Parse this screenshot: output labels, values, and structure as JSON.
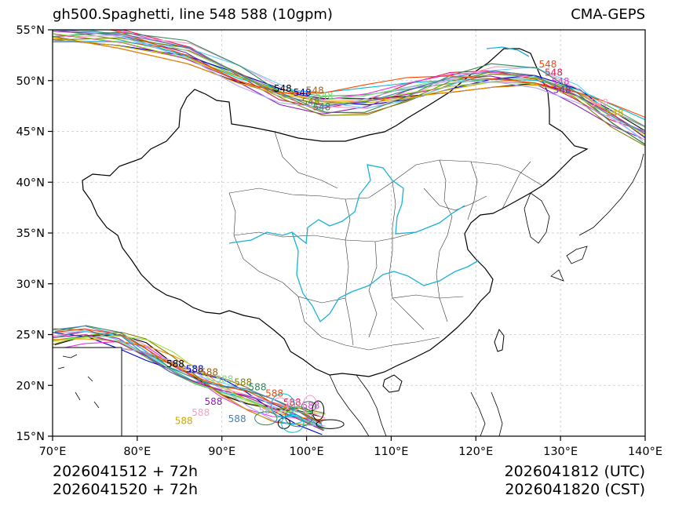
{
  "header": {
    "title": "gh500.Spaghetti, line 548 588 (10gpm)",
    "source": "CMA-GEPS"
  },
  "footer": {
    "init_utc": "2026041512 + 72h",
    "init_cst": "2026041520 + 72h",
    "valid_utc": "2026041812 (UTC)",
    "valid_cst": "2026041820 (CST)"
  },
  "chart_data": {
    "type": "line",
    "title": "gh500.Spaghetti, line 548 588 (10gpm)",
    "variable": "500 hPa geopotential height",
    "contour_levels": [
      548,
      588
    ],
    "units": "10gpm",
    "xlim": [
      70,
      140
    ],
    "ylim": [
      15,
      55
    ],
    "xticks": [
      70,
      80,
      90,
      100,
      110,
      120,
      130,
      140
    ],
    "xtick_labels": [
      "70°E",
      "80°E",
      "90°E",
      "100°E",
      "110°E",
      "120°E",
      "130°E",
      "140°E"
    ],
    "yticks": [
      15,
      20,
      25,
      30,
      35,
      40,
      45,
      50,
      55
    ],
    "ytick_labels": [
      "15°N",
      "20°N",
      "25°N",
      "30°N",
      "35°N",
      "40°N",
      "45°N",
      "50°N",
      "55°N"
    ],
    "grid": true,
    "member_colors": [
      "#000000",
      "#e6194b",
      "#3cb44b",
      "#0000cc",
      "#f032e6",
      "#00bcd4",
      "#9a6324",
      "#911eb4",
      "#ff8c00",
      "#7fdc7f",
      "#ff99cc",
      "#66ccff",
      "#808000",
      "#ccaa00",
      "#c71585",
      "#2e8b57",
      "#aaaaff",
      "#a0e040",
      "#ff4500",
      "#4682b4"
    ],
    "series": [
      {
        "name": "548 contour (ensemble members)",
        "level": 548,
        "trough": [
          [
            70,
            54.8
          ],
          [
            78,
            54.3
          ],
          [
            86,
            53.0
          ],
          [
            92,
            50.8
          ],
          [
            97,
            49.0
          ],
          [
            102,
            47.9
          ],
          [
            107,
            48.0
          ],
          [
            112,
            48.9
          ],
          [
            117,
            50.0
          ],
          [
            122,
            50.7
          ],
          [
            127,
            50.6
          ],
          [
            132,
            49.0
          ],
          [
            136,
            46.8
          ],
          [
            140,
            44.8
          ]
        ],
        "labels": [
          {
            "text": "548",
            "lon": 97.2,
            "lat": 48.9
          },
          {
            "text": "548",
            "lon": 99.5,
            "lat": 48.5
          },
          {
            "text": "548",
            "lon": 101.0,
            "lat": 48.7
          },
          {
            "text": "548",
            "lon": 102.1,
            "lat": 48.2
          },
          {
            "text": "548",
            "lon": 100.5,
            "lat": 47.6
          },
          {
            "text": "548",
            "lon": 101.8,
            "lat": 47.1
          },
          {
            "text": "548",
            "lon": 128.5,
            "lat": 51.3
          },
          {
            "text": "548",
            "lon": 129.2,
            "lat": 50.5
          },
          {
            "text": "548",
            "lon": 130.0,
            "lat": 49.6
          },
          {
            "text": "548",
            "lon": 130.2,
            "lat": 48.8
          },
          {
            "text": "548",
            "lon": 134.6,
            "lat": 47.5
          },
          {
            "text": "548",
            "lon": 136.4,
            "lat": 46.5
          }
        ]
      },
      {
        "name": "588 contour (ensemble members)",
        "level": 588,
        "trough": [
          [
            70,
            24.6
          ],
          [
            74,
            24.8
          ],
          [
            78,
            24.3
          ],
          [
            81,
            23.3
          ],
          [
            84,
            22.0
          ],
          [
            87,
            20.9
          ],
          [
            90,
            19.8
          ],
          [
            93,
            18.8
          ],
          [
            96,
            17.6
          ],
          [
            99,
            16.8
          ],
          [
            102,
            16.0
          ]
        ],
        "labels": [
          {
            "text": "588",
            "lon": 84.5,
            "lat": 21.8
          },
          {
            "text": "588",
            "lon": 86.8,
            "lat": 21.3
          },
          {
            "text": "588",
            "lon": 88.5,
            "lat": 21.0
          },
          {
            "text": "588",
            "lon": 90.3,
            "lat": 20.3
          },
          {
            "text": "588",
            "lon": 92.5,
            "lat": 20.0
          },
          {
            "text": "588",
            "lon": 94.2,
            "lat": 19.5
          },
          {
            "text": "588",
            "lon": 96.2,
            "lat": 18.9
          },
          {
            "text": "588",
            "lon": 98.3,
            "lat": 18.0
          },
          {
            "text": "588",
            "lon": 100.5,
            "lat": 17.7
          },
          {
            "text": "588",
            "lon": 89.0,
            "lat": 18.1
          },
          {
            "text": "588",
            "lon": 87.5,
            "lat": 17.0
          },
          {
            "text": "588",
            "lon": 85.5,
            "lat": 16.2
          },
          {
            "text": "588",
            "lon": 95.4,
            "lat": 17.2
          },
          {
            "text": "588",
            "lon": 91.8,
            "lat": 16.4
          }
        ]
      }
    ]
  }
}
